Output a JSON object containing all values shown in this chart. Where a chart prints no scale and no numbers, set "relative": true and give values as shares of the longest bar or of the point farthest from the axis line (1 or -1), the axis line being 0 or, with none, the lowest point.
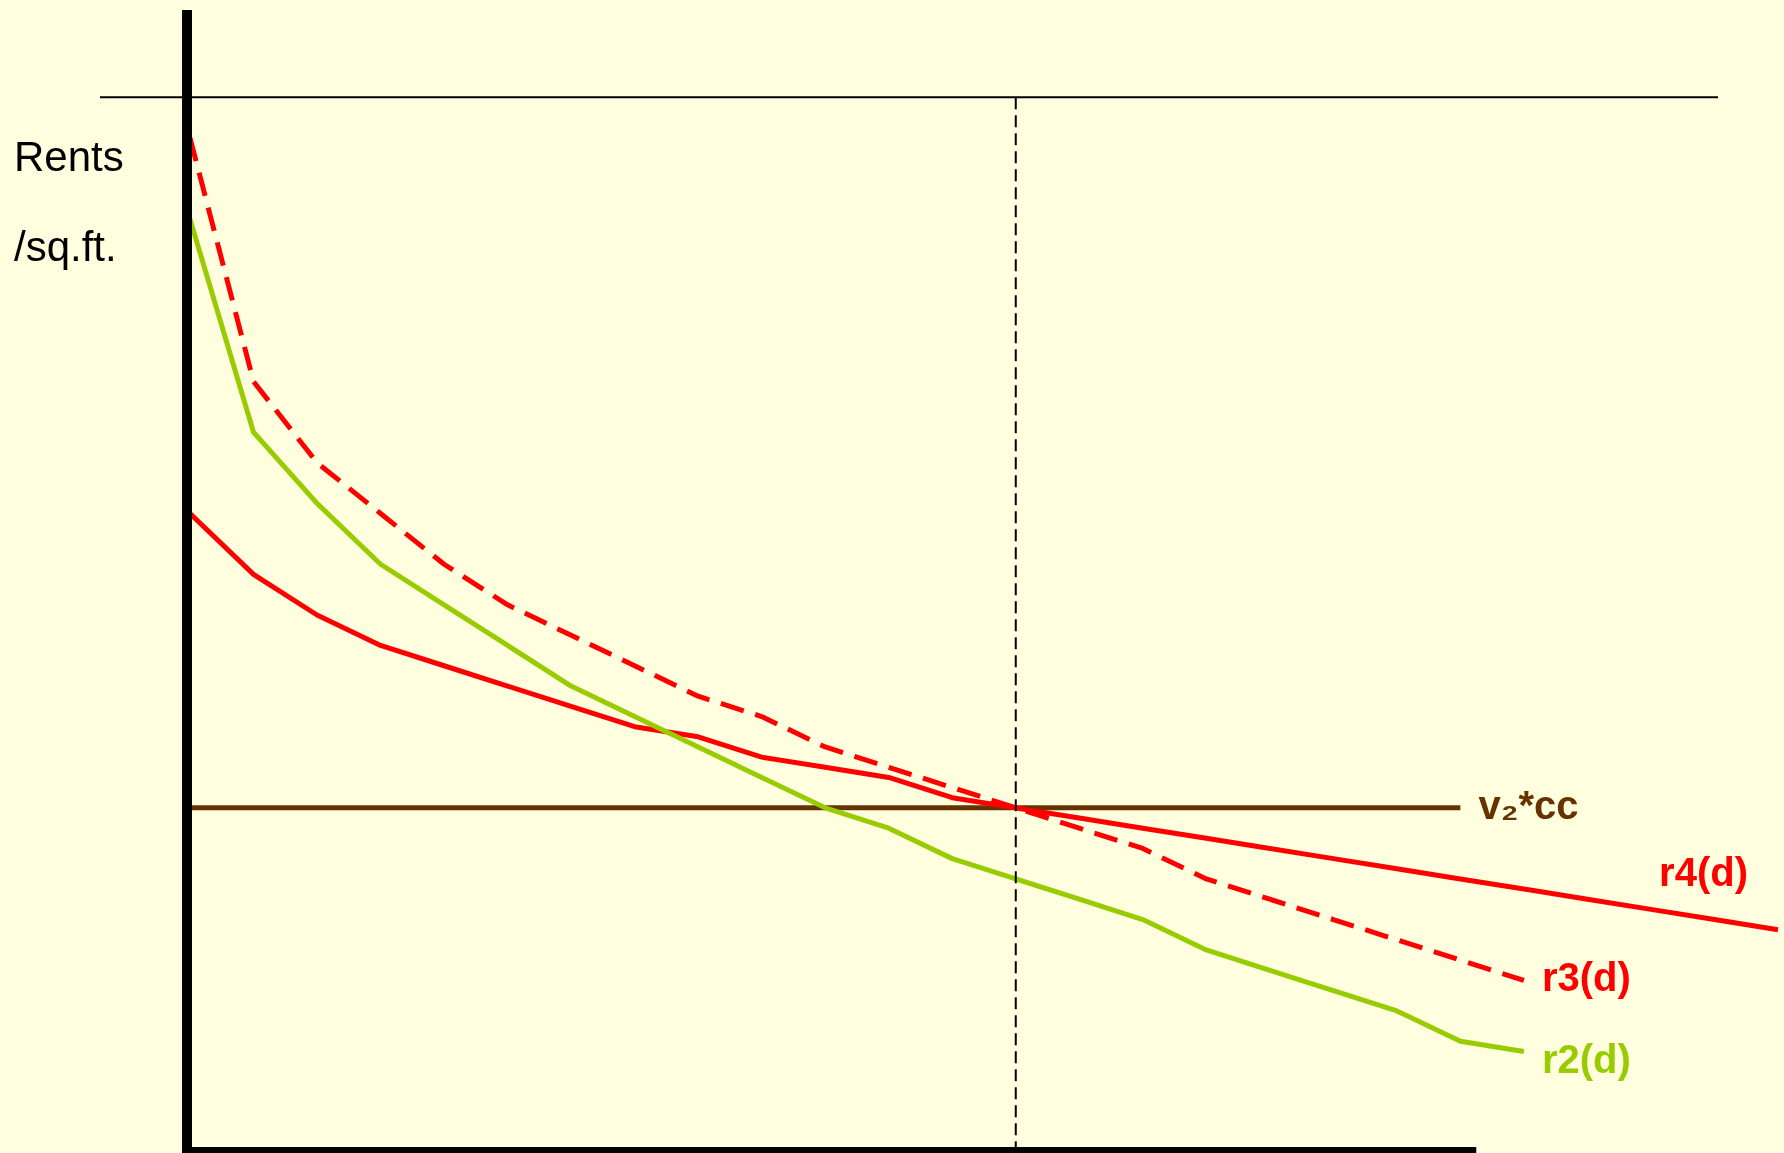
{
  "chart_data": {
    "type": "line",
    "ylabel": "Rents /sq.ft.",
    "relative": true,
    "legend": false,
    "grid": false,
    "marker": "none",
    "tick_labels": false,
    "categories": [
      null,
      null,
      null,
      null,
      null,
      null,
      null,
      null,
      null,
      null,
      null,
      null,
      null,
      null,
      null,
      null,
      null,
      null,
      null,
      null,
      null,
      null,
      null,
      null,
      null,
      null
    ],
    "series": [
      {
        "name": "r2(d)",
        "color": "#99cc00",
        "line_style": "solid",
        "values": [
          0.92,
          0.71,
          0.64,
          0.58,
          0.54,
          0.5,
          0.46,
          0.43,
          0.4,
          0.37,
          0.34,
          0.32,
          0.29,
          0.27,
          0.25,
          0.23,
          0.2,
          0.18,
          0.16,
          0.14,
          0.11,
          0.1,
          null,
          null,
          null,
          null
        ]
      },
      {
        "name": "r3(d)",
        "color": "#ff0000",
        "line_style": "dashed",
        "values": [
          1.0,
          0.76,
          0.68,
          0.63,
          0.58,
          0.54,
          0.51,
          0.48,
          0.45,
          0.43,
          0.4,
          0.38,
          0.36,
          0.34,
          0.32,
          0.3,
          0.27,
          0.25,
          0.23,
          0.21,
          0.19,
          0.17,
          null,
          null,
          null,
          null
        ]
      },
      {
        "name": "r4(d)",
        "color": "#ff0000",
        "line_style": "solid",
        "values": [
          0.63,
          0.57,
          0.53,
          0.5,
          0.48,
          0.46,
          0.44,
          0.42,
          0.41,
          0.39,
          0.38,
          0.37,
          0.35,
          0.34,
          0.33,
          0.32,
          0.31,
          0.3,
          0.29,
          0.28,
          0.27,
          0.26,
          0.25,
          0.24,
          0.23,
          0.22
        ]
      },
      {
        "name": "v₂*cc",
        "color": "#663300",
        "line_style": "solid",
        "values": [
          0.34,
          0.34,
          0.34,
          0.34,
          0.34,
          0.34,
          0.34,
          0.34,
          0.34,
          0.34,
          0.34,
          0.34,
          0.34,
          0.34,
          0.34,
          0.34,
          0.34,
          0.34,
          0.34,
          0.34,
          0.34,
          null,
          null,
          null,
          null,
          null
        ]
      }
    ],
    "ref_lines": [
      {
        "axis": "y",
        "value": 1.04,
        "color": "#000000",
        "line_style": "solid"
      }
    ]
  }
}
